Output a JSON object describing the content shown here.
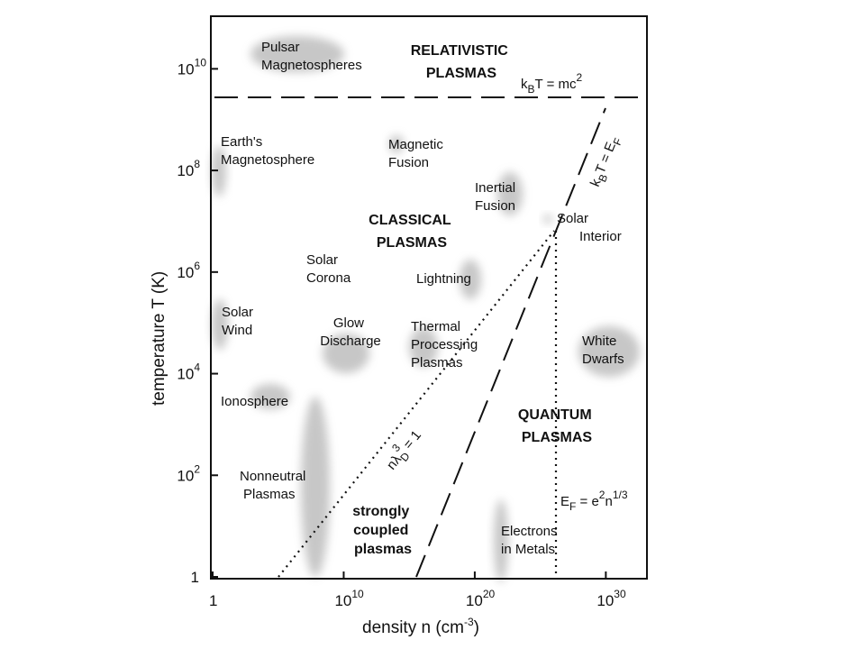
{
  "chart_data": {
    "type": "scatter",
    "xlabel": "density n (cm-3)",
    "xlabel_parts": {
      "base": "density n (cm",
      "exp": "-3",
      "close": ")"
    },
    "ylabel": "temperature T (K)",
    "x_scale": "log",
    "y_scale": "log",
    "xlim": [
      1,
      1e+33
    ],
    "ylim": [
      1,
      100000000000.0
    ],
    "grid": false,
    "x_ticks": [
      {
        "value": 1,
        "base": "1",
        "exp": ""
      },
      {
        "value": 10000000000.0,
        "base": "10",
        "exp": "10"
      },
      {
        "value": 1e+20,
        "base": "10",
        "exp": "20"
      },
      {
        "value": 1e+30,
        "base": "10",
        "exp": "30"
      }
    ],
    "y_ticks": [
      {
        "value": 1,
        "base": "1",
        "exp": ""
      },
      {
        "value": 100,
        "base": "10",
        "exp": "2"
      },
      {
        "value": 10000,
        "base": "10",
        "exp": "4"
      },
      {
        "value": 1000000,
        "base": "10",
        "exp": "6"
      },
      {
        "value": 100000000,
        "base": "10",
        "exp": "8"
      },
      {
        "value": 10000000000,
        "base": "10",
        "exp": "10"
      }
    ],
    "regions": [
      {
        "name": "RELATIVISTIC PLASMAS",
        "lines": [
          "RELATIVISTIC",
          "PLASMAS"
        ],
        "x": 1e+21,
        "y": 30000000000.0
      },
      {
        "name": "CLASSICAL PLASMAS",
        "lines": [
          "CLASSICAL",
          "PLASMAS"
        ],
        "x": 300000000000000.0,
        "y": 10000000.0
      },
      {
        "name": "QUANTUM PLASMAS",
        "lines": [
          "QUANTUM",
          "PLASMAS"
        ],
        "x": 3e+26,
        "y": 600
      },
      {
        "name": "strongly coupled plasmas",
        "lines": [
          "strongly",
          "coupled",
          "plasmas"
        ],
        "x": 30000000000000.0,
        "y": 3
      }
    ],
    "points": [
      {
        "label": "Pulsar Magnetospheres",
        "lines": [
          "Pulsar",
          "Magnetospheres"
        ],
        "x": 30000.0,
        "y": 15000000000.0,
        "spread": [
          10000.0,
          100000000000.0
        ],
        "label_x": 100000.0,
        "label_y": 20000000000.0
      },
      {
        "label": "Earth's Magnetosphere",
        "lines": [
          "Earth's",
          "Magnetosphere"
        ],
        "x": 1,
        "y": 50000000.0,
        "spread": [
          10,
          100000000.0
        ],
        "label_x": 2,
        "label_y": 250000000.0
      },
      {
        "label": "Magnetic Fusion",
        "lines": [
          "Magnetic",
          "Fusion"
        ],
        "x": 300000000000000.0,
        "y": 200000000.0,
        "spread": [
          10000000000000.0,
          1000000000000000.0
        ],
        "label_x": 300000000000000.0,
        "label_y": 300000000.0
      },
      {
        "label": "Inertial Fusion",
        "lines": [
          "Inertial",
          "Fusion"
        ],
        "x": 1e+24,
        "y": 50000000.0,
        "spread": [
          1e+22,
          1e+26
        ],
        "label_x": 5e+22,
        "label_y": 50000000.0
      },
      {
        "label": "Solar Interior",
        "lines": [
          "Solar",
          "Interior"
        ],
        "x": 1e+26,
        "y": 12000000.0,
        "spread": [
          1e+25,
          1e+26
        ],
        "label_x": 1e+27,
        "label_y": 10000000.0
      },
      {
        "label": "Solar Corona",
        "lines": [
          "Solar",
          "Corona"
        ],
        "x": 100000000.0,
        "y": 1000000.0,
        "spread": [
          1000000.0,
          10000000000.0
        ],
        "label_x": 100000000.0,
        "label_y": 1000000.0
      },
      {
        "label": "Lightning",
        "lines": [
          "Lightning"
        ],
        "x": 1e+20,
        "y": 500000.0,
        "spread": [
          1e+19,
          1e+21
        ],
        "label_x": 1e+18,
        "label_y": 600000.0
      },
      {
        "label": "Solar Wind",
        "lines": [
          "Solar",
          "Wind"
        ],
        "x": 10,
        "y": 100000.0,
        "spread": [
          1,
          100
        ],
        "label_x": 3,
        "label_y": 120000.0
      },
      {
        "label": "Glow Discharge",
        "lines": [
          "Glow",
          "Discharge"
        ],
        "x": 10000000000.0,
        "y": 20000.0,
        "spread": [
          100000000.0,
          1000000000000.0
        ],
        "label_x": 10000000000.0,
        "label_y": 20000.0
      },
      {
        "label": "Thermal Processing Plasmas",
        "lines": [
          "Thermal",
          "Processing",
          "Plasmas"
        ],
        "x": 3e+16,
        "y": 20000.0,
        "spread": [
          1000000000000000.0,
          1e+18
        ],
        "label_x": 1e+18,
        "label_y": 20000.0
      },
      {
        "label": "White Dwarfs",
        "lines": [
          "White",
          "Dwarfs"
        ],
        "x": 1e+30,
        "y": 20000.0,
        "spread": [
          1e+29,
          1e+31
        ],
        "label_x": 1e+29,
        "label_y": 20000.0
      },
      {
        "label": "Ionosphere",
        "lines": [
          "Ionosphere"
        ],
        "x": 100000.0,
        "y": 3000.0,
        "spread": [
          10000.0,
          1000000.0
        ],
        "label_x": 100000.0,
        "label_y": 3000.0
      },
      {
        "label": "Nonneutral Plasmas",
        "lines": [
          "Nonneutral",
          "Plasmas"
        ],
        "x": 1000000.0,
        "y": 50,
        "spread": [
          100000.0,
          1000000000.0
        ],
        "label_x": 1000000.0,
        "label_y": 50
      },
      {
        "label": "Electrons in Metals",
        "lines": [
          "Electrons",
          "in Metals"
        ],
        "x": 1e+23,
        "y": 3,
        "spread": [
          1e+22,
          1e+24
        ],
        "label_x": 1e+24,
        "label_y": 2
      }
    ],
    "lines": [
      {
        "label": "k_B T = mc^2",
        "style": "dashed",
        "x": [
          1,
          1e+30
        ],
        "y": [
          6000000000.0,
          6000000000.0
        ]
      },
      {
        "label": "k_B T = E_F",
        "style": "dashed",
        "x": [
          1e+17,
          1e+30
        ],
        "y": [
          1,
          1000000000.0
        ]
      },
      {
        "label": "n lambda_D^3 = 1",
        "style": "dotted",
        "x": [
          1000000.0,
          1e+26
        ],
        "y": [
          1,
          10000000.0
        ]
      },
      {
        "label": "E_F = e^2 n^1/3",
        "style": "dotted",
        "x": [
          1e+26,
          1e+26
        ],
        "y": [
          1,
          10000000.0
        ]
      }
    ]
  },
  "line_labels": {
    "mc2": {
      "a": "k",
      "b": "B",
      "c": "T = mc",
      "d": "2"
    },
    "ef": {
      "a": "k",
      "b": "B",
      "c": "T = E",
      "d": "F"
    },
    "debye": {
      "a": "nλ",
      "b": "D",
      "c": "3",
      "d": " = 1"
    },
    "fermi": {
      "a": "E",
      "b": "F",
      "c": " = e",
      "d": "2",
      "e": "n",
      "f": "1/3"
    }
  }
}
